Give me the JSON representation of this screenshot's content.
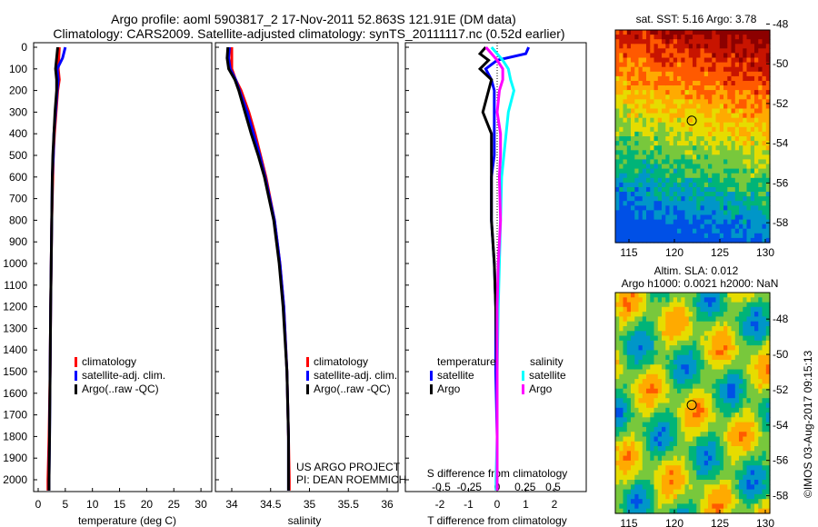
{
  "title_line1": "Argo profile: aoml 5903817_2 17-Nov-2011 52.863S 121.91E (DM data)",
  "title_line2": "Climatology: CARS2009. Satellite-adjusted climatology: synTS_20111117.nc (0.52d earlier)",
  "credit": "US ARGO PROJECT",
  "pi": "PI: DEAN ROEMMICH",
  "watermark": "©IMOS 03-Aug-2017 09:15:13",
  "colors": {
    "clim": "#ff0000",
    "sat": "#0000ff",
    "argo": "#000000",
    "sat_s": "#00ffff",
    "argo_s": "#ff00ff"
  },
  "chart_data": [
    {
      "type": "line",
      "name": "temperature",
      "xlabel": "temperature (deg C)",
      "xlim": [
        -2,
        31
      ],
      "xticks": [
        "0",
        "5",
        "10",
        "15",
        "20",
        "25",
        "30"
      ],
      "ylim": [
        2060,
        0
      ],
      "yticks": [
        "0",
        "100",
        "200",
        "300",
        "400",
        "500",
        "600",
        "700",
        "800",
        "900",
        "1000",
        "1100",
        "1200",
        "1300",
        "1400",
        "1500",
        "1600",
        "1700",
        "1800",
        "1900",
        "2000"
      ],
      "legend": [
        "climatology",
        "satellite-adj. clim.",
        "Argo(..raw -QC)"
      ],
      "depth": [
        0,
        50,
        100,
        150,
        200,
        300,
        400,
        500,
        600,
        800,
        1000,
        1200,
        1500,
        1800,
        2000,
        2050
      ],
      "series": [
        {
          "name": "climatology",
          "values": [
            3.9,
            3.8,
            3.7,
            3.9,
            3.6,
            3.3,
            3.0,
            2.8,
            2.7,
            2.5,
            2.4,
            2.3,
            2.2,
            2.0,
            1.8,
            1.8
          ]
        },
        {
          "name": "satellite-adj. clim.",
          "values": [
            5.0,
            4.5,
            3.5,
            3.7,
            3.5,
            3.2,
            2.9,
            2.8,
            2.6,
            2.5,
            2.4,
            2.3,
            2.2,
            2.1,
            2.0,
            2.0
          ]
        },
        {
          "name": "Argo(..raw -QC)",
          "values": [
            3.6,
            3.4,
            3.2,
            3.4,
            3.4,
            3.1,
            2.9,
            2.7,
            2.6,
            2.5,
            2.4,
            2.3,
            2.2,
            2.1,
            2.0,
            2.0
          ]
        }
      ]
    },
    {
      "type": "line",
      "name": "salinity",
      "xlabel": "salinity",
      "xlim": [
        33.9,
        36.1
      ],
      "xticks": [
        "34",
        "34.5",
        "35",
        "35.5",
        "36"
      ],
      "ylim": [
        2060,
        0
      ],
      "legend": [
        "climatology",
        "satellite-adj. clim.",
        "Argo(..raw -QC)"
      ],
      "depth": [
        0,
        50,
        100,
        150,
        200,
        300,
        400,
        500,
        600,
        800,
        1000,
        1200,
        1500,
        1800,
        2000,
        2050
      ],
      "series": [
        {
          "name": "climatology",
          "values": [
            34.0,
            34.0,
            34.0,
            34.05,
            34.12,
            34.22,
            34.3,
            34.37,
            34.44,
            34.55,
            34.62,
            34.67,
            34.71,
            34.73,
            34.74,
            34.74
          ]
        },
        {
          "name": "satellite-adj. clim.",
          "values": [
            33.97,
            33.96,
            33.98,
            34.05,
            34.1,
            34.2,
            34.28,
            34.36,
            34.43,
            34.55,
            34.62,
            34.67,
            34.71,
            34.73,
            34.73,
            34.73
          ]
        },
        {
          "name": "Argo(..raw -QC)",
          "values": [
            33.95,
            33.94,
            33.96,
            34.04,
            34.09,
            34.17,
            34.25,
            34.34,
            34.42,
            34.54,
            34.61,
            34.66,
            34.71,
            34.73,
            34.73,
            34.73
          ]
        }
      ]
    },
    {
      "type": "line",
      "name": "difference",
      "xlabel": "T difference from climatology",
      "x2label": "S difference from climatology",
      "xlim": [
        -3,
        3
      ],
      "xticks": [
        "-2",
        "-1",
        "0",
        "1",
        "2"
      ],
      "x2ticks": [
        "-0.5",
        "-0.25",
        "0",
        "0.25",
        "0.5"
      ],
      "ylim": [
        2060,
        0
      ],
      "legend_t": "temperature",
      "legend_s": "salinity",
      "legend": [
        "satellite",
        "Argo",
        "satellite",
        "Argo"
      ],
      "depth": [
        0,
        30,
        60,
        100,
        150,
        200,
        300,
        400,
        500,
        600,
        800,
        1000,
        1200,
        1500,
        1800,
        2000,
        2050
      ],
      "series": [
        {
          "name": "T satellite",
          "values": [
            1.1,
            1.0,
            0.0,
            -0.4,
            -0.2,
            -0.1,
            -0.1,
            -0.1,
            -0.1,
            -0.2,
            -0.2,
            -0.1,
            -0.05,
            -0.05,
            0,
            0,
            0
          ]
        },
        {
          "name": "T Argo",
          "values": [
            -0.4,
            -0.6,
            -0.3,
            -0.6,
            -0.2,
            -0.3,
            -0.5,
            -0.2,
            -0.2,
            -0.2,
            -0.2,
            -0.1,
            -0.05,
            0,
            0,
            0,
            0
          ]
        },
        {
          "name": "S satellite",
          "values": [
            -0.05,
            0.0,
            0.05,
            0.1,
            0.12,
            0.15,
            0.1,
            0.08,
            0.06,
            0.04,
            0.03,
            0.02,
            0.01,
            0.0,
            0.0,
            -0.01,
            -0.01
          ]
        },
        {
          "name": "S Argo",
          "values": [
            -0.1,
            -0.05,
            0.0,
            0.05,
            0.05,
            0.02,
            0.0,
            0.03,
            0.03,
            0.02,
            0.03,
            0.01,
            0.0,
            0.0,
            0.0,
            0.0,
            0.0
          ]
        }
      ]
    },
    {
      "type": "heatmap",
      "name": "sst-map",
      "title": "sat. SST: 5.16 Argo: 3.78",
      "xticks": [
        "115",
        "120",
        "125",
        "130"
      ],
      "yticks": [
        "-48",
        "-50",
        "-52",
        "-54",
        "-56",
        "-58"
      ],
      "xlim": [
        113.5,
        130.5
      ],
      "ylim": [
        -48.3,
        -59
      ],
      "float": [
        121.91,
        -52.863
      ]
    },
    {
      "type": "heatmap",
      "name": "sla-map",
      "title": "Altim. SLA: 0.012",
      "subtitle": "Argo h1000: 0.0021 h2000: NaN",
      "xticks": [
        "115",
        "120",
        "125",
        "130"
      ],
      "yticks": [
        "-48",
        "-50",
        "-52",
        "-54",
        "-56",
        "-58"
      ],
      "xlim": [
        113.5,
        130.5
      ],
      "ylim": [
        -46.5,
        -59
      ],
      "float": [
        121.91,
        -52.863
      ]
    }
  ]
}
